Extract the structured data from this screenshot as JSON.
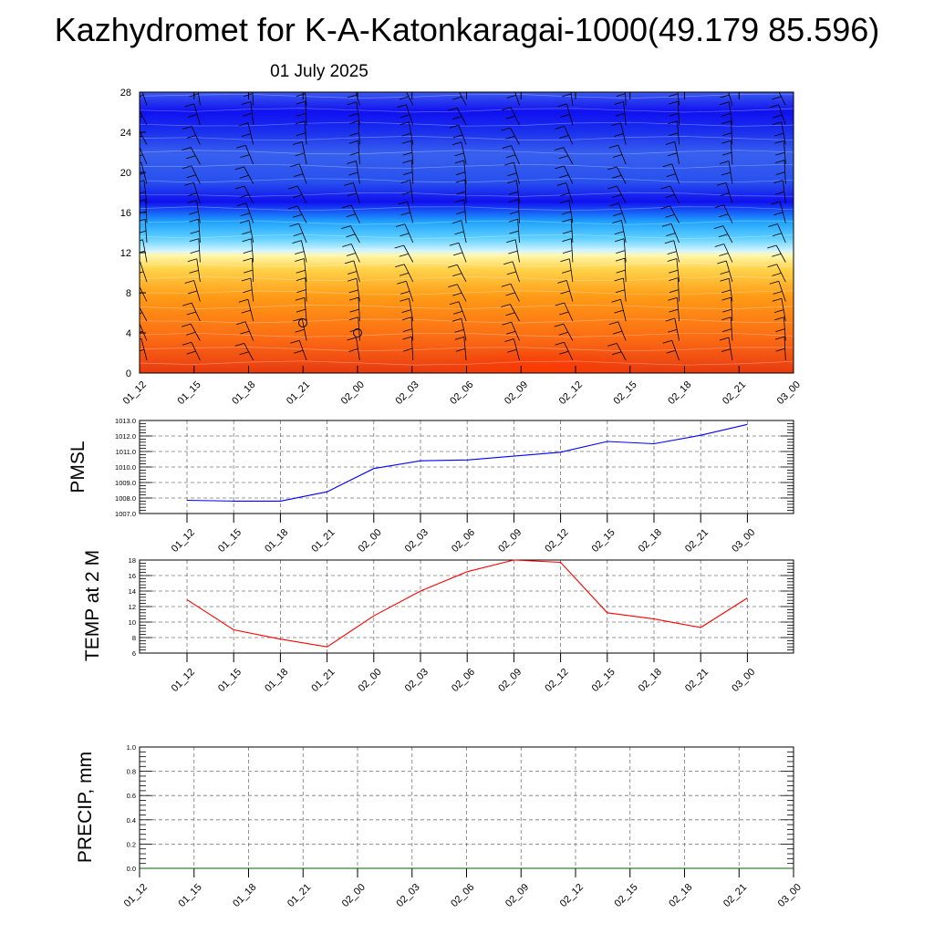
{
  "header": {
    "title": "Kazhydromet for K-A-Katonkaragai-1000(49.179 85.596)",
    "date": "01 July 2025"
  },
  "chart_data": [
    {
      "type": "heatmap",
      "title": "",
      "xlabel": "",
      "ylabel": "",
      "x_ticks": [
        "01_12",
        "01_15",
        "01_18",
        "01_21",
        "02_00",
        "02_03",
        "02_06",
        "02_09",
        "02_12",
        "02_15",
        "02_18",
        "02_21",
        "03_00"
      ],
      "y_ticks": [
        0,
        4,
        8,
        12,
        16,
        20,
        24,
        28
      ],
      "ylim": [
        0,
        28
      ],
      "colors": {
        "warm_low": "#e83a10",
        "warm_mid": "#ff9a16",
        "warm_top": "#fff8b0",
        "cool_light": "#c8f0ff",
        "cool_mid": "#1ea0ff",
        "cool_deep": "#1010ee",
        "cool_top": "#3860ee"
      },
      "annotations": [
        "wind barbs",
        "calm wind circles"
      ]
    },
    {
      "type": "line",
      "ylabel": "PMSL",
      "categories": [
        "01_12",
        "01_15",
        "01_18",
        "01_21",
        "02_00",
        "02_03",
        "02_06",
        "02_09",
        "02_12",
        "02_15",
        "02_18",
        "02_21",
        "03_00"
      ],
      "y_ticks": [
        "1007.0",
        "1008.0",
        "1009.0",
        "1010.0",
        "1011.0",
        "1012.0",
        "1013.0"
      ],
      "ylim": [
        1007.0,
        1013.0
      ],
      "series": [
        {
          "values": [
            1007.85,
            1007.8,
            1007.8,
            1008.4,
            1009.9,
            1010.4,
            1010.45,
            1010.7,
            1010.95,
            1011.65,
            1011.5,
            1012.05,
            1012.75
          ],
          "color": "#0000ff"
        }
      ],
      "grid": true
    },
    {
      "type": "line",
      "ylabel": "TEMP at 2 M",
      "categories": [
        "01_12",
        "01_15",
        "01_18",
        "01_21",
        "02_00",
        "02_03",
        "02_06",
        "02_09",
        "02_12",
        "02_15",
        "02_18",
        "02_21",
        "03_00"
      ],
      "y_ticks": [
        "6",
        "8",
        "10",
        "12",
        "14",
        "16",
        "18"
      ],
      "ylim": [
        6,
        18
      ],
      "series": [
        {
          "values": [
            12.9,
            9.0,
            7.8,
            6.8,
            10.8,
            14.0,
            16.5,
            18.0,
            17.7,
            11.2,
            10.4,
            9.3,
            13.1
          ],
          "color": "#ff0000"
        }
      ],
      "grid": true
    },
    {
      "type": "line",
      "ylabel": "PRECIP, mm",
      "categories": [
        "01_12",
        "01_15",
        "01_18",
        "01_21",
        "02_00",
        "02_03",
        "02_06",
        "02_09",
        "02_12",
        "02_15",
        "02_18",
        "02_21",
        "03_00"
      ],
      "y_ticks": [
        "0.0",
        "0.2",
        "0.4",
        "0.6",
        "0.8",
        "1.0"
      ],
      "ylim": [
        0,
        1.0
      ],
      "series": [
        {
          "values": [
            0,
            0,
            0,
            0,
            0,
            0,
            0,
            0,
            0,
            0,
            0,
            0,
            0
          ],
          "color": "#006400"
        }
      ],
      "grid": true
    }
  ]
}
